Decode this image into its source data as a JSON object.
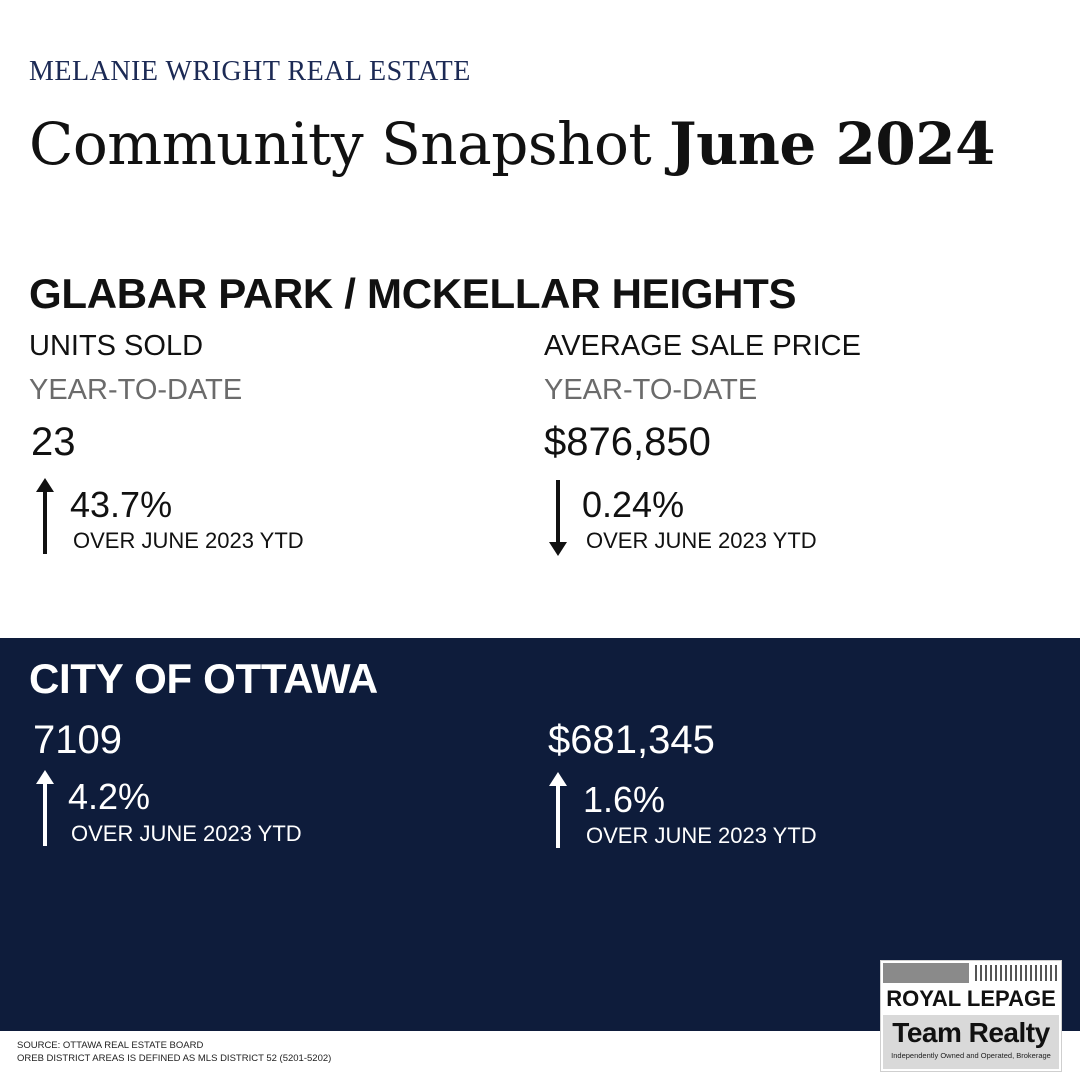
{
  "header": {
    "brand": "MELANIE WRIGHT REAL ESTATE",
    "title_prefix": "Community Snapshot ",
    "title_bold": "June 2024"
  },
  "neighbourhood": {
    "name": "GLABAR PARK / MCKELLAR HEIGHTS",
    "units": {
      "label": "UNITS SOLD",
      "period": "YEAR-TO-DATE",
      "value": "23",
      "direction": "up",
      "change": "43.7%",
      "compare": "OVER JUNE 2023 YTD"
    },
    "price": {
      "label": "AVERAGE SALE PRICE",
      "period": "YEAR-TO-DATE",
      "value": "$876,850",
      "direction": "down",
      "change": "0.24%",
      "compare": "OVER JUNE 2023 YTD"
    }
  },
  "city": {
    "name": "CITY OF OTTAWA",
    "units": {
      "value": "7109",
      "direction": "up",
      "change": "4.2%",
      "compare": "OVER JUNE 2023 YTD"
    },
    "price": {
      "value": "$681,345",
      "direction": "up",
      "change": "1.6%",
      "compare": "OVER JUNE 2023 YTD"
    }
  },
  "footer": {
    "source": "SOURCE: OTTAWA REAL ESTATE BOARD",
    "note": "OREB DISTRICT AREAS IS DEFINED AS MLS DISTRICT 52 (5201-5202)"
  },
  "logo": {
    "line1": "ROYAL LEPAGE",
    "line2": "Team Realty",
    "tagline": "Independently Owned and Operated, Brokerage"
  },
  "colors": {
    "navy": "#0e1c3b",
    "brand_blue": "#1c2a55"
  },
  "icons": {
    "up": "arrow-up-icon",
    "down": "arrow-down-icon"
  }
}
